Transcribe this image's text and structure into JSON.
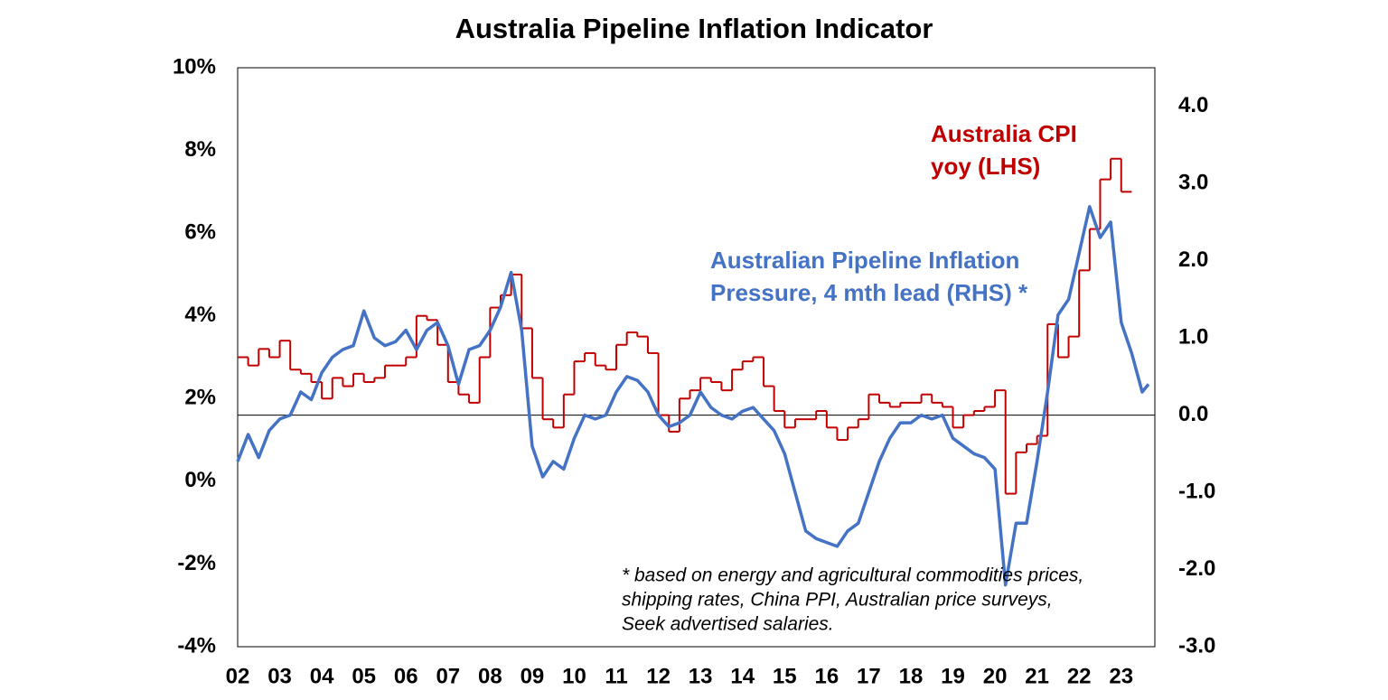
{
  "chart_data": {
    "type": "line",
    "title": "Australia Pipeline Inflation Indicator",
    "xlim": [
      2002,
      2023.8
    ],
    "xticks": [
      {
        "value": 2002,
        "label": "02"
      },
      {
        "value": 2003,
        "label": "03"
      },
      {
        "value": 2004,
        "label": "04"
      },
      {
        "value": 2005,
        "label": "05"
      },
      {
        "value": 2006,
        "label": "06"
      },
      {
        "value": 2007,
        "label": "07"
      },
      {
        "value": 2008,
        "label": "08"
      },
      {
        "value": 2009,
        "label": "09"
      },
      {
        "value": 2010,
        "label": "10"
      },
      {
        "value": 2011,
        "label": "11"
      },
      {
        "value": 2012,
        "label": "12"
      },
      {
        "value": 2013,
        "label": "13"
      },
      {
        "value": 2014,
        "label": "14"
      },
      {
        "value": 2015,
        "label": "15"
      },
      {
        "value": 2016,
        "label": "16"
      },
      {
        "value": 2017,
        "label": "17"
      },
      {
        "value": 2018,
        "label": "18"
      },
      {
        "value": 2019,
        "label": "19"
      },
      {
        "value": 2020,
        "label": "20"
      },
      {
        "value": 2021,
        "label": "21"
      },
      {
        "value": 2022,
        "label": "22"
      },
      {
        "value": 2023,
        "label": "23"
      }
    ],
    "ylim": [
      -4,
      10
    ],
    "yticks": [
      {
        "value": -4,
        "label": "-4%"
      },
      {
        "value": -2,
        "label": "-2%"
      },
      {
        "value": 0,
        "label": "0%"
      },
      {
        "value": 2,
        "label": "2%"
      },
      {
        "value": 4,
        "label": "4%"
      },
      {
        "value": 6,
        "label": "6%"
      },
      {
        "value": 8,
        "label": "8%"
      },
      {
        "value": 10,
        "label": "10%"
      }
    ],
    "y2lim": [
      -3,
      4.5
    ],
    "y2ticks": [
      {
        "value": -3,
        "label": "-3.0"
      },
      {
        "value": -2,
        "label": "-2.0"
      },
      {
        "value": -1,
        "label": "-1.0"
      },
      {
        "value": 0,
        "label": "0.0"
      },
      {
        "value": 1,
        "label": "1.0"
      },
      {
        "value": 2,
        "label": "2.0"
      },
      {
        "value": 3,
        "label": "3.0"
      },
      {
        "value": 4,
        "label": "4.0"
      }
    ],
    "zero_line_axis": "y2",
    "series": [
      {
        "name": [
          "Australia CPI",
          "yoy (LHS)"
        ],
        "color": "#C00000",
        "step": true,
        "axis": "y",
        "x": [
          2002,
          2002.25,
          2002.5,
          2002.75,
          2003,
          2003.25,
          2003.5,
          2003.75,
          2004,
          2004.25,
          2004.5,
          2004.75,
          2005,
          2005.25,
          2005.5,
          2005.75,
          2006,
          2006.25,
          2006.5,
          2006.75,
          2007,
          2007.25,
          2007.5,
          2007.75,
          2008,
          2008.25,
          2008.5,
          2008.75,
          2009,
          2009.25,
          2009.5,
          2009.75,
          2010,
          2010.25,
          2010.5,
          2010.75,
          2011,
          2011.25,
          2011.5,
          2011.75,
          2012,
          2012.25,
          2012.5,
          2012.75,
          2013,
          2013.25,
          2013.5,
          2013.75,
          2014,
          2014.25,
          2014.5,
          2014.75,
          2015,
          2015.25,
          2015.5,
          2015.75,
          2016,
          2016.25,
          2016.5,
          2016.75,
          2017,
          2017.25,
          2017.5,
          2017.75,
          2018,
          2018.25,
          2018.5,
          2018.75,
          2019,
          2019.25,
          2019.5,
          2019.75,
          2020,
          2020.25,
          2020.5,
          2020.75,
          2021,
          2021.25,
          2021.5,
          2021.75,
          2022,
          2022.25,
          2022.5,
          2022.75,
          2023
        ],
        "values": [
          3.0,
          2.8,
          3.2,
          3.0,
          3.4,
          2.7,
          2.6,
          2.4,
          2.0,
          2.5,
          2.3,
          2.6,
          2.4,
          2.5,
          2.8,
          2.8,
          3.0,
          4.0,
          3.9,
          3.3,
          2.4,
          2.1,
          1.9,
          3.0,
          4.2,
          4.5,
          5.0,
          3.7,
          2.5,
          1.5,
          1.3,
          2.1,
          2.9,
          3.1,
          2.8,
          2.7,
          3.3,
          3.6,
          3.5,
          3.1,
          1.6,
          1.2,
          2.0,
          2.2,
          2.5,
          2.4,
          2.2,
          2.7,
          2.9,
          3.0,
          2.3,
          1.7,
          1.3,
          1.5,
          1.5,
          1.7,
          1.3,
          1.0,
          1.3,
          1.5,
          2.1,
          1.9,
          1.8,
          1.9,
          1.9,
          2.1,
          1.9,
          1.8,
          1.3,
          1.6,
          1.7,
          1.8,
          2.2,
          -0.3,
          0.7,
          0.9,
          1.1,
          3.8,
          3.0,
          3.5,
          5.1,
          6.1,
          7.3,
          7.8,
          7.0
        ]
      },
      {
        "name": [
          "Australian Pipeline Inflation",
          "Pressure, 4 mth lead (RHS) *"
        ],
        "color": "#4472C4",
        "step": false,
        "axis": "y2",
        "x": [
          2002,
          2002.25,
          2002.5,
          2002.75,
          2003,
          2003.25,
          2003.5,
          2003.75,
          2004,
          2004.25,
          2004.5,
          2004.75,
          2005,
          2005.25,
          2005.5,
          2005.75,
          2006,
          2006.25,
          2006.5,
          2006.75,
          2007,
          2007.25,
          2007.5,
          2007.75,
          2008,
          2008.25,
          2008.5,
          2008.75,
          2009,
          2009.25,
          2009.5,
          2009.75,
          2010,
          2010.25,
          2010.5,
          2010.75,
          2011,
          2011.25,
          2011.5,
          2011.75,
          2012,
          2012.25,
          2012.5,
          2012.75,
          2013,
          2013.25,
          2013.5,
          2013.75,
          2014,
          2014.25,
          2014.5,
          2014.75,
          2015,
          2015.25,
          2015.5,
          2015.75,
          2016,
          2016.25,
          2016.5,
          2016.75,
          2017,
          2017.25,
          2017.5,
          2017.75,
          2018,
          2018.25,
          2018.5,
          2018.75,
          2019,
          2019.25,
          2019.5,
          2019.75,
          2020,
          2020.25,
          2020.5,
          2020.75,
          2021,
          2021.25,
          2021.5,
          2021.75,
          2022,
          2022.25,
          2022.5,
          2022.75,
          2023,
          2023.25,
          2023.5,
          2023.65
        ],
        "values": [
          -0.6,
          -0.25,
          -0.55,
          -0.2,
          -0.05,
          0.0,
          0.3,
          0.2,
          0.55,
          0.75,
          0.85,
          0.9,
          1.35,
          1.0,
          0.9,
          0.95,
          1.1,
          0.85,
          1.1,
          1.2,
          0.9,
          0.4,
          0.85,
          0.9,
          1.1,
          1.4,
          1.85,
          1.1,
          -0.4,
          -0.8,
          -0.6,
          -0.7,
          -0.3,
          0.0,
          -0.05,
          0.0,
          0.3,
          0.5,
          0.45,
          0.3,
          0.0,
          -0.15,
          -0.1,
          0.0,
          0.3,
          0.1,
          0.0,
          -0.05,
          0.05,
          0.1,
          -0.05,
          -0.2,
          -0.5,
          -1.0,
          -1.5,
          -1.6,
          -1.65,
          -1.7,
          -1.5,
          -1.4,
          -1.0,
          -0.6,
          -0.3,
          -0.1,
          -0.1,
          0.0,
          -0.05,
          0.0,
          -0.3,
          -0.4,
          -0.5,
          -0.55,
          -0.7,
          -2.2,
          -1.4,
          -1.4,
          -0.6,
          0.3,
          1.3,
          1.5,
          2.1,
          2.7,
          2.3,
          2.5,
          1.2,
          0.8,
          0.3,
          0.4
        ]
      }
    ],
    "footnote": [
      "* based on energy and agricultural commodities prices,",
      "shipping rates, China PPI, Australian price surveys,",
      "Seek advertised salaries."
    ]
  }
}
